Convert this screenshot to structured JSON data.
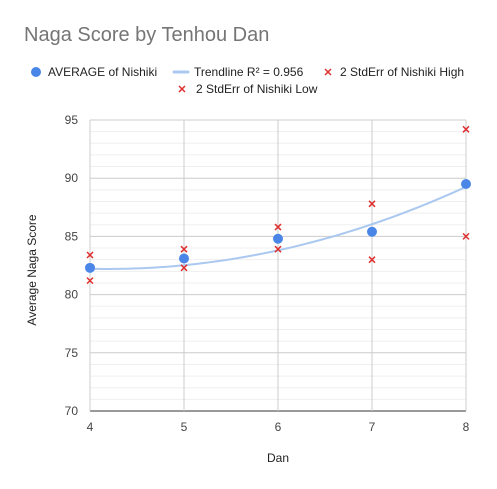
{
  "chart_data": {
    "type": "scatter",
    "title": "Naga Score by Tenhou Dan",
    "xlabel": "Dan",
    "ylabel": "Average Naga Score",
    "xlim": [
      4,
      8
    ],
    "ylim": [
      70,
      95
    ],
    "x_ticks": [
      4,
      5,
      6,
      7,
      8
    ],
    "y_ticks": [
      70,
      75,
      80,
      85,
      90,
      95
    ],
    "grid": true,
    "legend_position": "top",
    "series": [
      {
        "name": "AVERAGE of Nishiki",
        "marker": "circle",
        "color": "#4a86e8",
        "x": [
          4,
          5,
          6,
          7,
          8
        ],
        "y": [
          82.3,
          83.1,
          84.8,
          85.4,
          89.5
        ]
      },
      {
        "name": "2 StdErr of Nishiki High",
        "marker": "x",
        "color": "#e03030",
        "x": [
          4,
          5,
          6,
          7,
          8
        ],
        "y": [
          83.4,
          83.9,
          85.8,
          87.8,
          94.2
        ]
      },
      {
        "name": "2 StdErr of Nishiki Low",
        "marker": "x",
        "color": "#e03030",
        "x": [
          4,
          5,
          6,
          7,
          8
        ],
        "y": [
          81.2,
          82.3,
          83.9,
          83.0,
          85.0
        ]
      }
    ],
    "trendline": {
      "name": "Trendline R² = 0.956",
      "color": "#aac8f0",
      "type": "polynomial",
      "coefficients": [
        0.485,
        -4.06,
        90.7
      ]
    }
  }
}
